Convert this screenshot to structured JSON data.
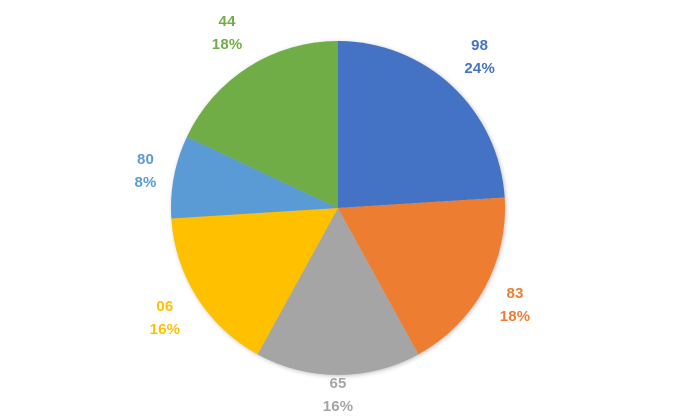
{
  "background_color": "#ffffff",
  "chart_data": {
    "type": "pie",
    "title": "",
    "legend_position": "none",
    "start_angle_deg": 0,
    "direction": "clockwise",
    "label_style": "outside-end, value over percent, colored per slice",
    "slices": [
      {
        "value_label": "98",
        "percent_label": "24%",
        "percent": 24,
        "color": "#4472C4",
        "label_radius": 207
      },
      {
        "value_label": "83",
        "percent_label": "18%",
        "percent": 18,
        "color": "#ED7D31",
        "label_radius": 202
      },
      {
        "value_label": "65",
        "percent_label": "16%",
        "percent": 16,
        "color": "#A5A5A5",
        "label_radius": 187
      },
      {
        "value_label": "06",
        "percent_label": "16%",
        "percent": 16,
        "color": "#FFC000",
        "label_radius": 205
      },
      {
        "value_label": "80",
        "percent_label": "8%",
        "percent": 8,
        "color": "#5B9BD5",
        "label_radius": 196
      },
      {
        "value_label": "44",
        "percent_label": "18%",
        "percent": 18,
        "color": "#70AD47",
        "label_radius": 207
      }
    ]
  }
}
